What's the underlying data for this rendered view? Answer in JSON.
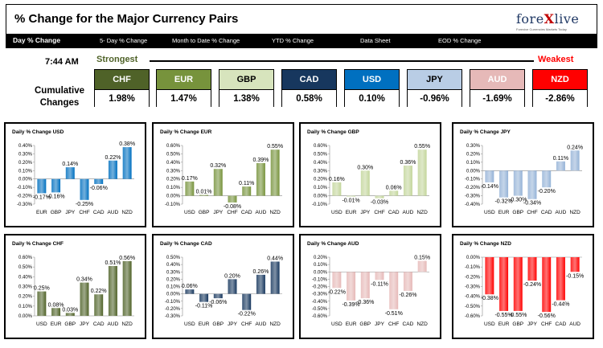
{
  "header": {
    "title": "% Change for the Major Currency Pairs",
    "logo_text_a": "fore",
    "logo_text_x": "X",
    "logo_text_b": "live",
    "logo_tagline": "Forexive Currencies Markets Today",
    "tabs": [
      {
        "label": "Day % Change",
        "active": true
      },
      {
        "label": "5- Day % Change",
        "active": false
      },
      {
        "label": "Month to Date % Change",
        "active": false
      },
      {
        "label": "YTD % Change",
        "active": false
      },
      {
        "label": "Data Sheet",
        "active": false
      },
      {
        "label": "EOD % Change",
        "active": false
      }
    ]
  },
  "summary": {
    "time": "7:44 AM",
    "strongest_label": "Strongest",
    "weakest_label": "Weakest",
    "cumulative_line1": "Cumulative",
    "cumulative_line2": "Changes",
    "currencies": [
      {
        "code": "CHF",
        "value": "1.98%",
        "bg": "#4f6228",
        "fg": "#ffffff"
      },
      {
        "code": "EUR",
        "value": "1.47%",
        "bg": "#77933c",
        "fg": "#ffffff"
      },
      {
        "code": "GBP",
        "value": "1.38%",
        "bg": "#d7e4bd",
        "fg": "#000000"
      },
      {
        "code": "CAD",
        "value": "0.58%",
        "bg": "#17375e",
        "fg": "#ffffff"
      },
      {
        "code": "USD",
        "value": "0.10%",
        "bg": "#0070c0",
        "fg": "#ffffff"
      },
      {
        "code": "JPY",
        "value": "-0.96%",
        "bg": "#b9cde5",
        "fg": "#000000"
      },
      {
        "code": "AUD",
        "value": "-1.69%",
        "bg": "#e6b9b8",
        "fg": "#ffffff"
      },
      {
        "code": "NZD",
        "value": "-2.86%",
        "bg": "#ff0000",
        "fg": "#ffffff"
      }
    ]
  },
  "chart_data": [
    {
      "type": "bar",
      "title": "Daily % Change USD",
      "categories": [
        "EUR",
        "GBP",
        "JPY",
        "CHF",
        "CAD",
        "AUD",
        "NZD"
      ],
      "values": [
        -0.17,
        -0.16,
        0.14,
        -0.25,
        -0.06,
        0.22,
        0.38
      ],
      "labels": [
        "-0.17%",
        "-0.16%",
        "0.14%",
        "-0.25%",
        "-0.06%",
        "0.22%",
        "0.38%"
      ],
      "yticks": [
        "0.40%",
        "0.30%",
        "0.20%",
        "0.10%",
        "0.00%",
        "-0.10%",
        "-0.20%",
        "-0.30%"
      ],
      "ylim": [
        -0.3,
        0.4
      ],
      "color": "#0070c0"
    },
    {
      "type": "bar",
      "title": "Daily % Change EUR",
      "categories": [
        "USD",
        "GBP",
        "JPY",
        "CHF",
        "CAD",
        "AUD",
        "NZD"
      ],
      "values": [
        0.17,
        0.01,
        0.32,
        -0.08,
        0.11,
        0.39,
        0.55
      ],
      "labels": [
        "0.17%",
        "0.01%",
        "0.32%",
        "-0.08%",
        "0.11%",
        "0.39%",
        "0.55%"
      ],
      "yticks": [
        "0.60%",
        "0.50%",
        "0.40%",
        "0.30%",
        "0.20%",
        "0.10%",
        "0.00%",
        "-0.10%"
      ],
      "ylim": [
        -0.1,
        0.6
      ],
      "color": "#77933c"
    },
    {
      "type": "bar",
      "title": "Daily % Change GBP",
      "categories": [
        "USD",
        "EUR",
        "JPY",
        "CHF",
        "CAD",
        "AUD",
        "NZD"
      ],
      "values": [
        0.16,
        -0.01,
        0.3,
        -0.03,
        0.06,
        0.36,
        0.55
      ],
      "labels": [
        "0.16%",
        "-0.01%",
        "0.30%",
        "-0.03%",
        "0.06%",
        "0.36%",
        "0.55%"
      ],
      "yticks": [
        "0.60%",
        "0.50%",
        "0.40%",
        "0.30%",
        "0.20%",
        "0.10%",
        "0.00%",
        "-0.10%"
      ],
      "ylim": [
        -0.1,
        0.6
      ],
      "color": "#c3d69b"
    },
    {
      "type": "bar",
      "title": "Daily % Change JPY",
      "categories": [
        "USD",
        "EUR",
        "GBP",
        "CHF",
        "CAD",
        "AUD",
        "NZD"
      ],
      "values": [
        -0.14,
        -0.32,
        -0.3,
        -0.34,
        -0.2,
        0.11,
        0.24
      ],
      "labels": [
        "-0.14%",
        "-0.32%",
        "-0.30%",
        "-0.34%",
        "-0.20%",
        "0.11%",
        "0.24%"
      ],
      "yticks": [
        "0.30%",
        "0.20%",
        "0.10%",
        "0.00%",
        "-0.10%",
        "-0.20%",
        "-0.30%",
        "-0.40%"
      ],
      "ylim": [
        -0.4,
        0.3
      ],
      "color": "#95b3d7"
    },
    {
      "type": "bar",
      "title": "Daily % Change CHF",
      "categories": [
        "USD",
        "EUR",
        "GBP",
        "JPY",
        "CAD",
        "AUD",
        "NZD"
      ],
      "values": [
        0.25,
        0.08,
        0.03,
        0.34,
        0.22,
        0.51,
        0.56
      ],
      "labels": [
        "0.25%",
        "0.08%",
        "0.03%",
        "0.34%",
        "0.22%",
        "0.51%",
        "0.56%"
      ],
      "yticks": [
        "0.60%",
        "0.50%",
        "0.40%",
        "0.30%",
        "0.20%",
        "0.10%",
        "0.00%"
      ],
      "ylim": [
        0,
        0.6
      ],
      "color": "#4f6228"
    },
    {
      "type": "bar",
      "title": "Daily % Change CAD",
      "categories": [
        "USD",
        "EUR",
        "GBP",
        "JPY",
        "CHF",
        "AUD",
        "NZD"
      ],
      "values": [
        0.06,
        -0.11,
        -0.06,
        0.2,
        -0.22,
        0.26,
        0.44
      ],
      "labels": [
        "0.06%",
        "-0.11%",
        "-0.06%",
        "0.20%",
        "-0.22%",
        "0.26%",
        "0.44%"
      ],
      "yticks": [
        "0.50%",
        "0.40%",
        "0.30%",
        "0.20%",
        "0.10%",
        "0.00%",
        "-0.10%",
        "-0.20%",
        "-0.30%"
      ],
      "ylim": [
        -0.3,
        0.5
      ],
      "color": "#17375e"
    },
    {
      "type": "bar",
      "title": "Daily % Change AUD",
      "categories": [
        "USD",
        "EUR",
        "GBP",
        "JPY",
        "CHF",
        "CAD",
        "NZD"
      ],
      "values": [
        -0.22,
        -0.39,
        -0.36,
        -0.11,
        -0.51,
        -0.26,
        0.15
      ],
      "labels": [
        "-0.22%",
        "-0.39%",
        "-0.36%",
        "-0.11%",
        "-0.51%",
        "-0.26%",
        "0.15%"
      ],
      "yticks": [
        "0.20%",
        "0.10%",
        "0.00%",
        "-0.10%",
        "-0.20%",
        "-0.30%",
        "-0.40%",
        "-0.50%",
        "-0.60%"
      ],
      "ylim": [
        -0.6,
        0.2
      ],
      "color": "#e6b9b8"
    },
    {
      "type": "bar",
      "title": "Daily % Change NZD",
      "categories": [
        "USD",
        "EUR",
        "GBP",
        "JPY",
        "CHF",
        "CAD",
        "AUD"
      ],
      "values": [
        -0.38,
        -0.55,
        -0.55,
        -0.24,
        -0.56,
        -0.44,
        -0.15
      ],
      "labels": [
        "-0.38%",
        "-0.55%",
        "-0.55%",
        "-0.24%",
        "-0.56%",
        "-0.44%",
        "-0.15%"
      ],
      "yticks": [
        "0.00%",
        "-0.10%",
        "-0.20%",
        "-0.30%",
        "-0.40%",
        "-0.50%",
        "-0.60%"
      ],
      "ylim": [
        -0.6,
        0
      ],
      "color": "#ff0000"
    }
  ]
}
